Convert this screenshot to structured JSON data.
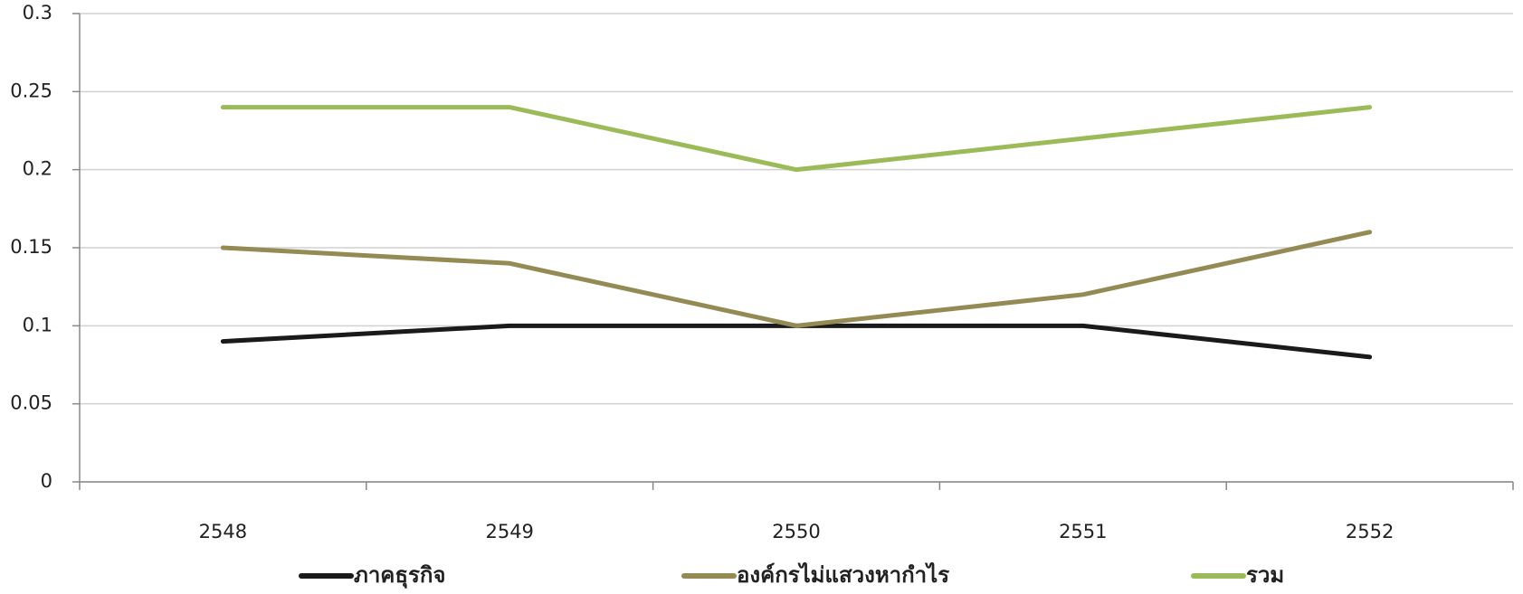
{
  "chart_data": {
    "type": "line",
    "categories": [
      "2548",
      "2549",
      "2550",
      "2551",
      "2552"
    ],
    "series": [
      {
        "name": "ภาคธุรกิจ",
        "color": "#1a1a1a",
        "values": [
          0.09,
          0.1,
          0.1,
          0.1,
          0.08
        ]
      },
      {
        "name": "องค์กรไม่แสวงหากำไร",
        "color": "#948a54",
        "values": [
          0.15,
          0.14,
          0.1,
          0.12,
          0.16
        ]
      },
      {
        "name": "รวม",
        "color": "#9bbb59",
        "values": [
          0.24,
          0.24,
          0.2,
          0.22,
          0.24
        ]
      }
    ],
    "ylim": [
      0,
      0.3
    ],
    "yticks": [
      0,
      0.05,
      0.1,
      0.15,
      0.2,
      0.25,
      0.3
    ],
    "grid": true,
    "legend": "bottom"
  }
}
